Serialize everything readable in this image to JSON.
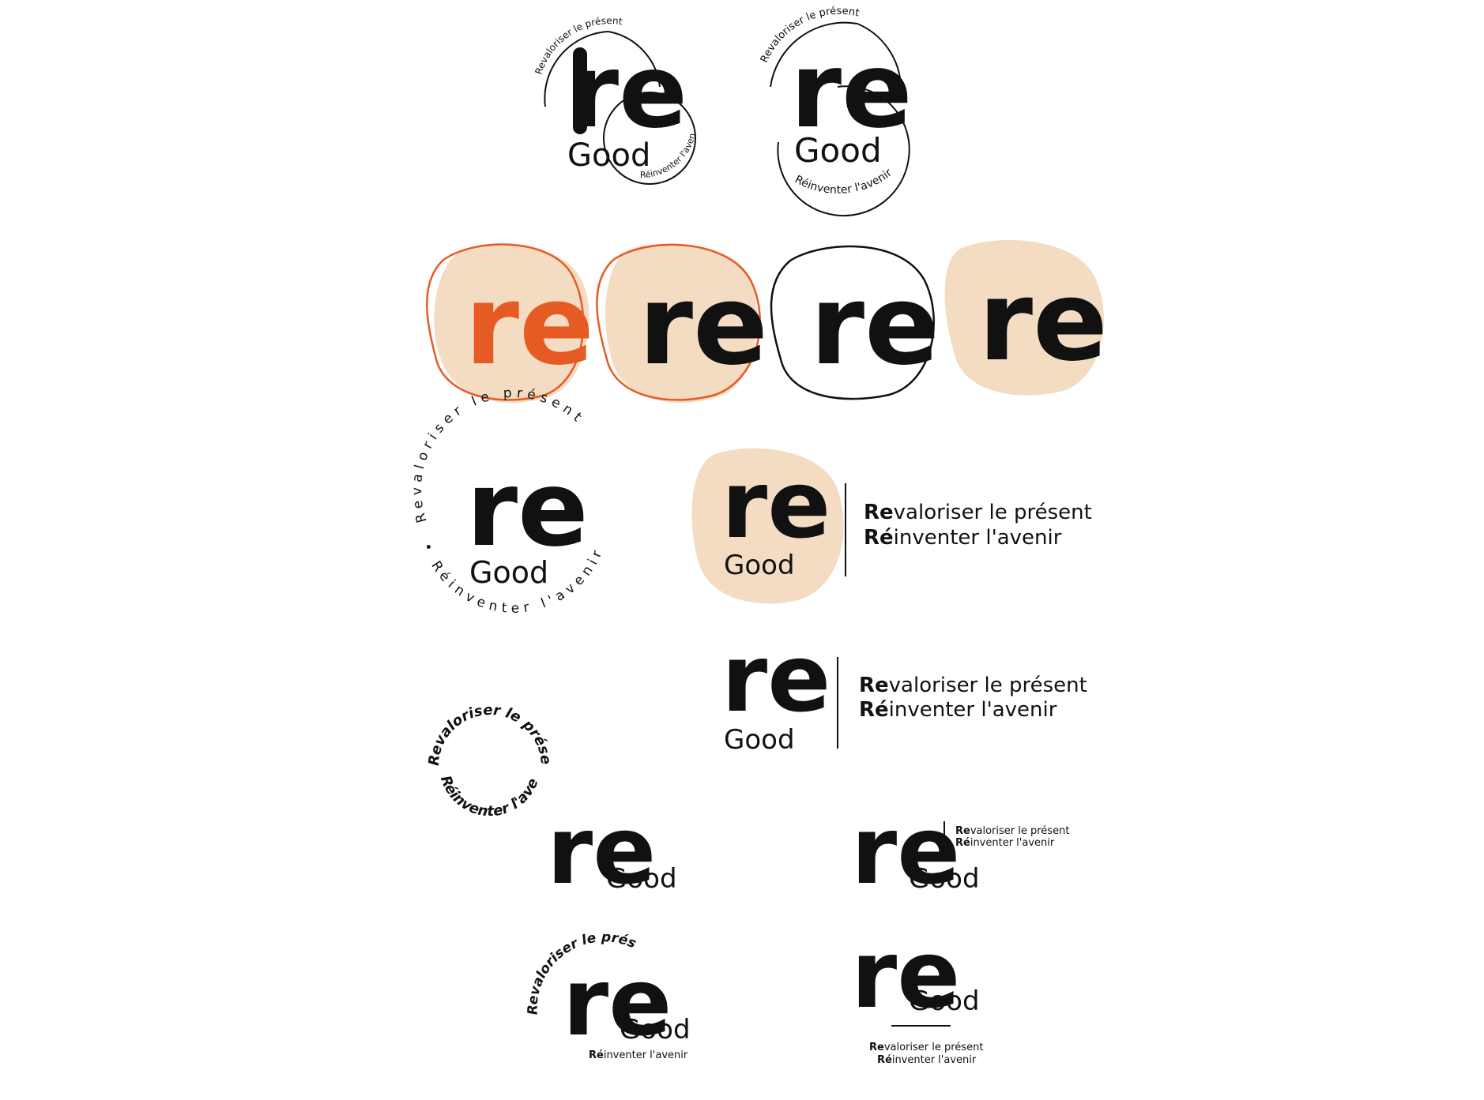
{
  "brand": {
    "monogram": "re",
    "name": "Good",
    "tagline_1": "Revaloriser le présent",
    "tagline_2": "Réinventer l'avenir",
    "tagline_1_bold": "Re",
    "tagline_1_rest": "valoriser le présent",
    "tagline_2_bold": "Ré",
    "tagline_2_rest": "inventer l'avenir",
    "ring_tagline_1": "Revaloriser le présent •",
    "ring_tagline_2": "• Réinventer l'avenir"
  },
  "colors": {
    "ink": "#111111",
    "orange": "#e65a24",
    "beige": "#f3dcc2",
    "background": "#ffffff"
  },
  "logo_variants": [
    {
      "id": "circle-script-small",
      "style": "line circles with curved taglines"
    },
    {
      "id": "circle-script-large",
      "style": "line circles with curved taglines"
    },
    {
      "id": "blob-orange",
      "style": "beige blob, orange outline, orange monogram"
    },
    {
      "id": "blob-orange-outline",
      "style": "beige blob, orange outline, black monogram"
    },
    {
      "id": "blob-black-outline",
      "style": "black outline, black monogram"
    },
    {
      "id": "blob-beige",
      "style": "beige blob, black monogram"
    },
    {
      "id": "round-stamp",
      "style": "ring text stamp"
    },
    {
      "id": "blob-horizontal",
      "style": "beige blob with side taglines"
    },
    {
      "id": "plain-horizontal",
      "style": "monogram with side taglines"
    },
    {
      "id": "ring-script",
      "style": "script ring taglines"
    },
    {
      "id": "compact-good",
      "style": "re + Good compact"
    },
    {
      "id": "compact-good-tagline",
      "style": "re + Good with small taglines"
    },
    {
      "id": "arched-tagline",
      "style": "arched script tagline over monogram"
    },
    {
      "id": "stacked-underline",
      "style": "monogram with rule and taglines below"
    }
  ]
}
